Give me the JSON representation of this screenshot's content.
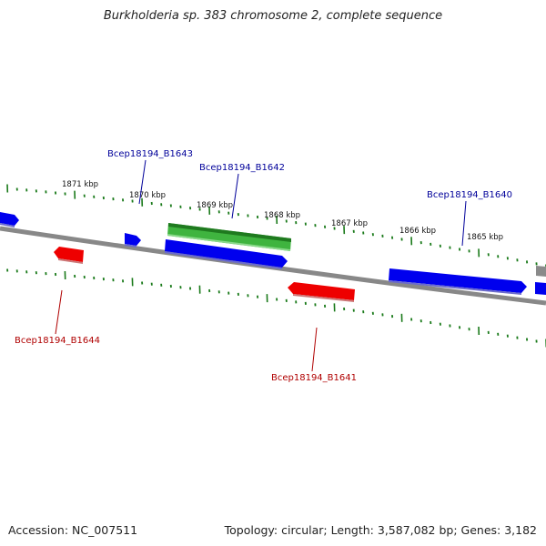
{
  "title": "Burkholderia sp. 383 chromosome 2, complete sequence",
  "footer": {
    "accession": "Accession: NC_007511",
    "summary": "Topology: circular; Length: 3,587,082 bp; Genes: 3,182"
  },
  "colors": {
    "forward_gene": "#0000ee",
    "reverse_gene": "#ee0000",
    "selected_gene": "#2a9a2a",
    "backbone": "#888888",
    "tick": "#1a7a1a",
    "forward_label": "#00009a",
    "reverse_label": "#b00000"
  },
  "ticks": [
    {
      "label": "1871 kbp"
    },
    {
      "label": "1870 kbp"
    },
    {
      "label": "1869 kbp"
    },
    {
      "label": "1868 kbp"
    },
    {
      "label": "1867 kbp"
    },
    {
      "label": "1866 kbp"
    },
    {
      "label": "1865 kbp"
    }
  ],
  "gene_labels": [
    {
      "text": "Bcep18194_B1643",
      "strand": "forward"
    },
    {
      "text": "Bcep18194_B1642",
      "strand": "forward"
    },
    {
      "text": "Bcep18194_B1640",
      "strand": "forward"
    },
    {
      "text": "Bcep18194_B1644",
      "strand": "reverse"
    },
    {
      "text": "Bcep18194_B1641",
      "strand": "reverse"
    }
  ]
}
